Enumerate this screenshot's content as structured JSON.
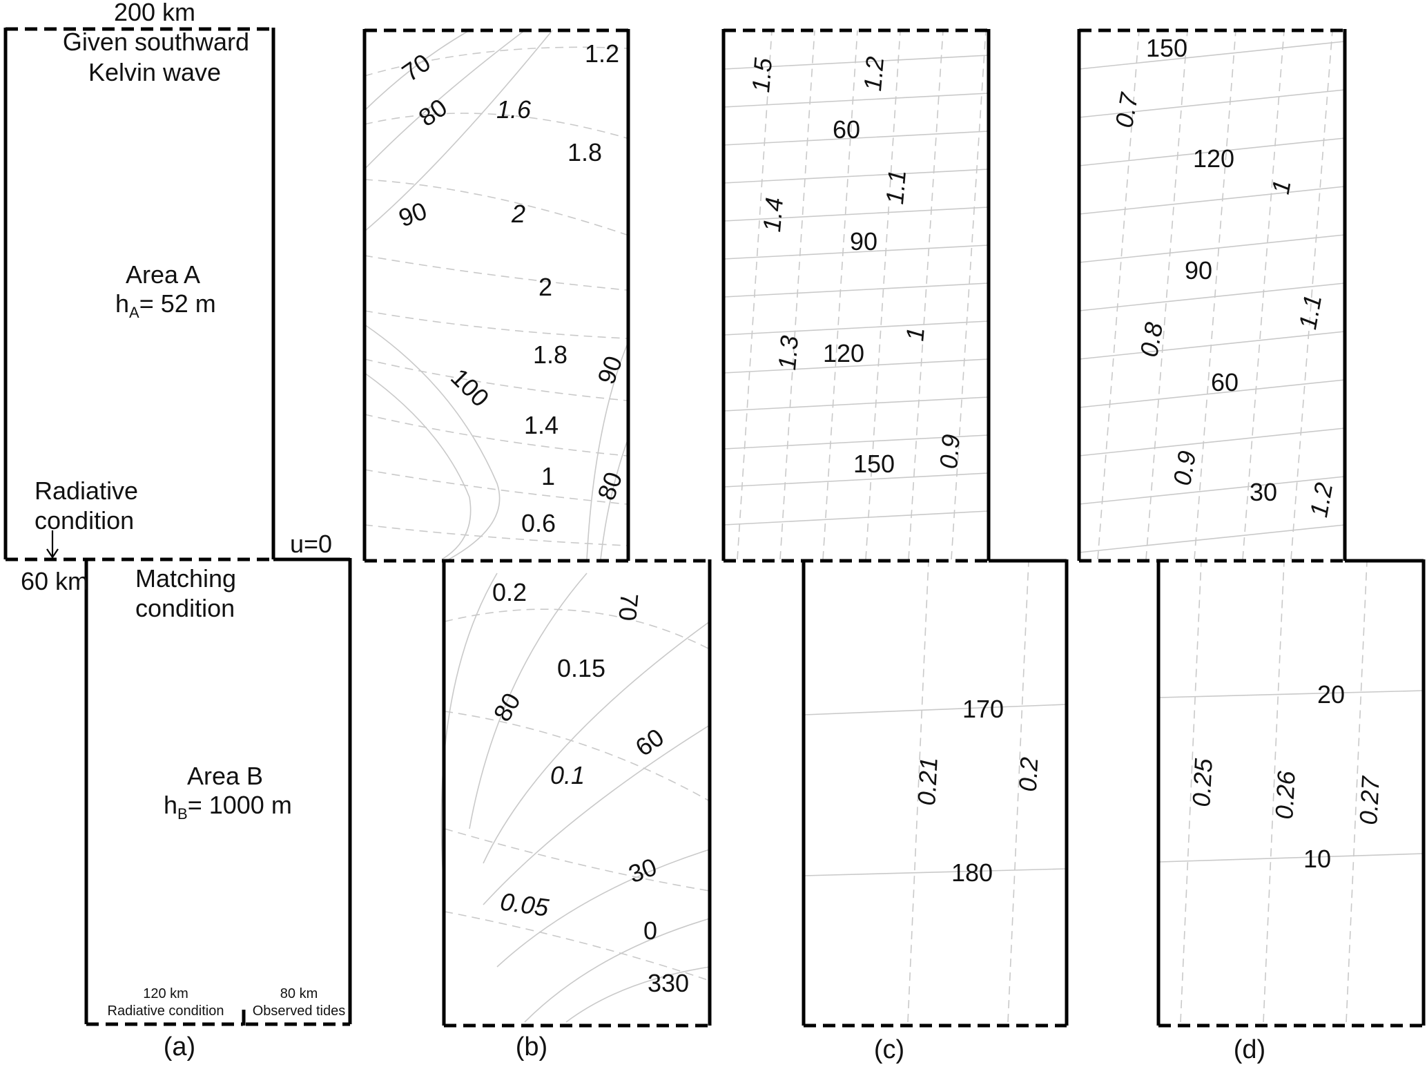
{
  "panel_a": {
    "width_top": "200 km",
    "kelvin_line1": "Given southward",
    "kelvin_line2": "Kelvin wave",
    "area_a_name": "Area A",
    "area_a_h_pre": "h",
    "area_a_h_sub": "A",
    "area_a_h_post": "= 52 m",
    "radiative_line1": "Radiative",
    "radiative_line2": "condition",
    "step_width": "60 km",
    "u_zero": "u=0",
    "matching_line1": "Matching",
    "matching_line2": "condition",
    "area_b_name": "Area B",
    "area_b_h_pre": "h",
    "area_b_h_sub": "B",
    "area_b_h_post": "= 1000 m",
    "bottom_left_width": "120 km",
    "bottom_left_cond": "Radiative condition",
    "bottom_right_width": "80 km",
    "bottom_right_cond": "Observed tides",
    "panel_label": "(a)"
  },
  "panel_b": {
    "panel_label": "(b)",
    "upper_phase": [
      "70",
      "80",
      "90",
      "100",
      "90",
      "80"
    ],
    "upper_amp": [
      "1.2",
      "1.6",
      "1.8",
      "2",
      "2",
      "1.8",
      "1.4",
      "1",
      "0.6"
    ],
    "lower_phase": [
      "70",
      "80",
      "60",
      "30",
      "0",
      "330"
    ],
    "lower_amp": [
      "0.2",
      "0.15",
      "0.1",
      "0.05"
    ]
  },
  "panel_c": {
    "panel_label": "(c)",
    "upper_phase": [
      "60",
      "90",
      "120",
      "150"
    ],
    "upper_amp": [
      "1.5",
      "1.2",
      "1.1",
      "1.4",
      "1.3",
      "1",
      "0.9"
    ],
    "lower_phase": [
      "170",
      "180"
    ],
    "lower_amp": [
      "0.21",
      "0.2"
    ]
  },
  "panel_d": {
    "panel_label": "(d)",
    "upper_phase": [
      "150",
      "120",
      "90",
      "60",
      "30"
    ],
    "upper_amp": [
      "0.7",
      "1",
      "1.1",
      "0.8",
      "0.9",
      "1.2"
    ],
    "lower_phase": [
      "20",
      "10"
    ],
    "lower_amp": [
      "0.25",
      "0.26",
      "0.27"
    ]
  }
}
